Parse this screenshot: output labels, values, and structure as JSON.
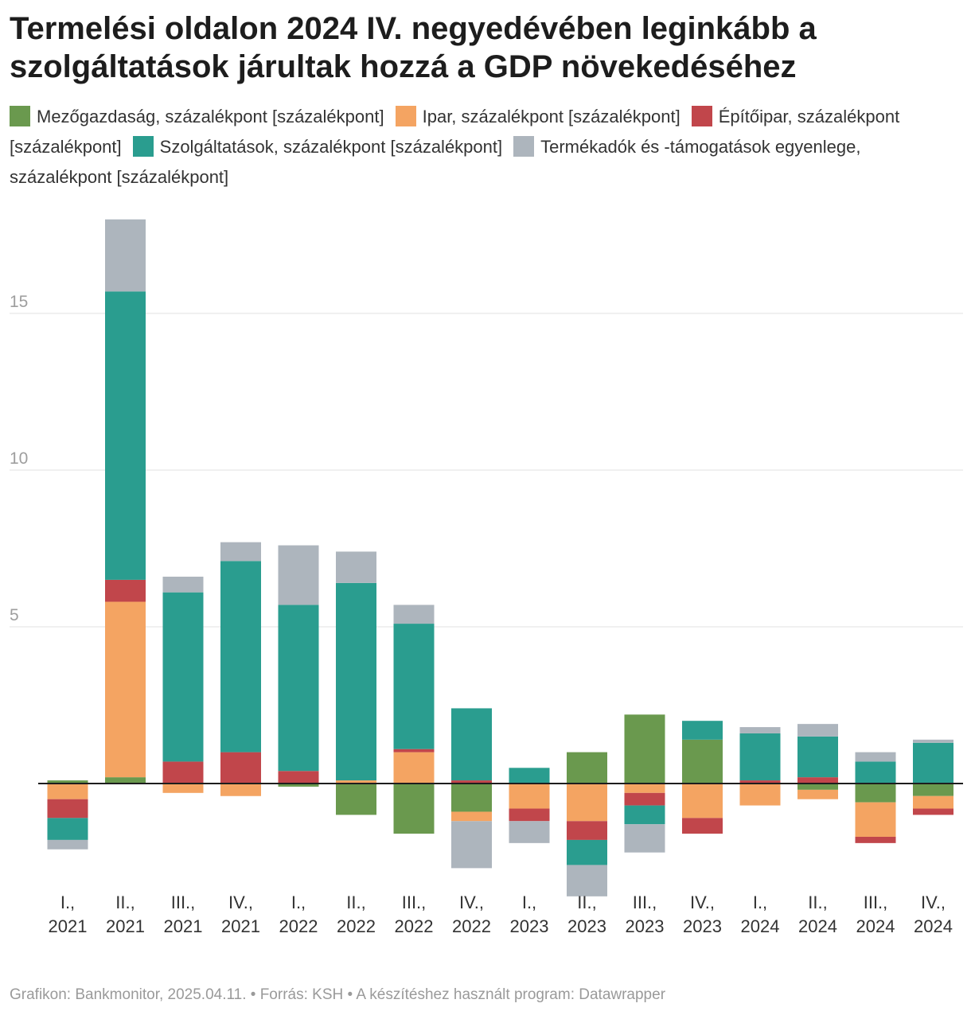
{
  "title": "Termelési oldalon 2024 IV. negyedévében leginkább a szolgáltatások járultak hozzá a GDP növekedéséhez",
  "footer": "Grafikon: Bankmonitor, 2025.04.11. • Forrás: KSH • A készítéshez használt program: Datawrapper",
  "chart_data": {
    "type": "bar",
    "stacked": true,
    "title": "Termelési oldalon 2024 IV. negyedévében leginkább a szolgáltatások járultak hozzá a GDP növekedéséhez",
    "ylim": [
      -4,
      18
    ],
    "yticks": [
      5,
      10,
      15
    ],
    "grid": true,
    "categories": [
      "I., 2021",
      "II., 2021",
      "III., 2021",
      "IV., 2021",
      "I., 2022",
      "II., 2022",
      "III., 2022",
      "IV., 2022",
      "I., 2023",
      "II., 2023",
      "III., 2023",
      "IV., 2023",
      "I., 2024",
      "II., 2024",
      "III., 2024",
      "IV., 2024"
    ],
    "series": [
      {
        "name": "Mezőgazdaság, százalékpont [százalékpont]",
        "color": "#6a994e",
        "values": [
          0.1,
          0.2,
          0.0,
          0.0,
          -0.1,
          -1.0,
          -1.6,
          -0.9,
          0.0,
          1.0,
          2.2,
          1.4,
          0.0,
          -0.2,
          -0.6,
          -0.4
        ]
      },
      {
        "name": "Ipar, százalékpont [százalékpont]",
        "color": "#f4a462",
        "values": [
          -0.5,
          5.6,
          -0.3,
          -0.4,
          0.0,
          0.1,
          1.0,
          -0.3,
          -0.8,
          -1.2,
          -0.3,
          -1.1,
          -0.7,
          -0.3,
          -1.1,
          -0.4
        ]
      },
      {
        "name": "Építőipar, százalékpont [százalékpont]",
        "color": "#c1464b",
        "values": [
          -0.6,
          0.7,
          0.7,
          1.0,
          0.4,
          0.0,
          0.1,
          0.1,
          -0.4,
          -0.6,
          -0.4,
          -0.5,
          0.1,
          0.2,
          -0.2,
          -0.2
        ]
      },
      {
        "name": "Szolgáltatások, százalékpont [százalékpont]",
        "color": "#2a9d8f",
        "values": [
          -0.7,
          9.2,
          5.4,
          6.1,
          5.3,
          6.3,
          4.0,
          2.3,
          0.5,
          -0.8,
          -0.6,
          0.6,
          1.5,
          1.3,
          0.7,
          1.3
        ]
      },
      {
        "name": "Termékadók és -támogatások egyenlege, százalékpont [százalékpont]",
        "color": "#adb5bd",
        "values": [
          -0.3,
          2.3,
          0.5,
          0.6,
          1.9,
          1.0,
          0.6,
          -1.5,
          -0.7,
          -1.0,
          -0.9,
          0.0,
          0.2,
          0.4,
          0.3,
          0.1
        ]
      }
    ]
  }
}
